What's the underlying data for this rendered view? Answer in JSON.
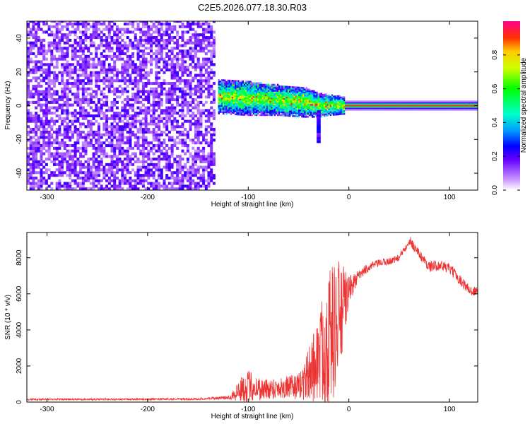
{
  "figure": {
    "title": "C2E5.2026.077.18.30.R03"
  },
  "chart_data": [
    {
      "type": "heatmap",
      "title": "C2E5.2026.077.18.30.R03",
      "xlabel": "Height of straight line (km)",
      "ylabel": "Frequency (Hz)",
      "xlim": [
        -320,
        128
      ],
      "ylim": [
        -50,
        50
      ],
      "xticks": [
        -300,
        -200,
        -100,
        0,
        100
      ],
      "xtick_labels": [
        "-300",
        "-200",
        "-100",
        "0",
        "100"
      ],
      "yticks": [
        -40,
        -20,
        0,
        20,
        40
      ],
      "ytick_labels": [
        "-40",
        "-20",
        "0",
        "20",
        "40"
      ],
      "noise_region_x": [
        -320,
        -135
      ],
      "signal_band": [
        {
          "x": -130,
          "freq_center": 5,
          "freq_spread": 6
        },
        {
          "x": -100,
          "freq_center": 4,
          "freq_spread": 6
        },
        {
          "x": -70,
          "freq_center": 3,
          "freq_spread": 5
        },
        {
          "x": -45,
          "freq_center": 2,
          "freq_spread": 5
        },
        {
          "x": -30,
          "freq_center": 0,
          "freq_spread": 3
        },
        {
          "x": -20,
          "freq_center": 0,
          "freq_spread": 2
        },
        {
          "x": 0,
          "freq_center": 0,
          "freq_spread": 1
        },
        {
          "x": 128,
          "freq_center": 0,
          "freq_spread": 1
        }
      ],
      "colorbar": {
        "label": "Normalized spectral amplitude",
        "range": [
          0,
          1
        ],
        "ticks": [
          0,
          0.2,
          0.4,
          0.6,
          0.8
        ],
        "tick_labels": [
          "0.0",
          "0.2",
          "0.4",
          "0.6",
          "0.8"
        ]
      }
    },
    {
      "type": "line",
      "xlabel": "Height of straight line (km)",
      "ylabel": "SNR (10 * v/v)",
      "xlim": [
        -320,
        128
      ],
      "ylim": [
        0,
        9400
      ],
      "xticks": [
        -300,
        -200,
        -100,
        0,
        100
      ],
      "xtick_labels": [
        "-300",
        "-200",
        "-100",
        "0",
        "100"
      ],
      "yticks": [
        0,
        2000,
        4000,
        6000,
        8000
      ],
      "ytick_labels": [
        "0",
        "2000",
        "4000",
        "6000",
        "8000"
      ],
      "series_color": "#ee3333",
      "envelope": {
        "x": [
          -320,
          -250,
          -200,
          -150,
          -120,
          -110,
          -100,
          -85,
          -70,
          -50,
          -40,
          -30,
          -20,
          -10,
          0,
          10,
          20,
          30,
          40,
          50,
          60,
          70,
          80,
          90,
          100,
          110,
          120,
          128
        ],
        "mean": [
          150,
          150,
          160,
          170,
          250,
          600,
          900,
          700,
          800,
          850,
          1500,
          2500,
          3500,
          4500,
          6200,
          7000,
          7500,
          7700,
          7800,
          8000,
          9000,
          8200,
          7500,
          7600,
          7400,
          6800,
          6200,
          6100
        ],
        "spread": [
          50,
          50,
          50,
          50,
          100,
          600,
          900,
          600,
          600,
          700,
          1500,
          2500,
          4000,
          3500,
          800,
          300,
          250,
          200,
          200,
          200,
          300,
          250,
          300,
          300,
          300,
          300,
          300,
          300
        ]
      }
    }
  ]
}
